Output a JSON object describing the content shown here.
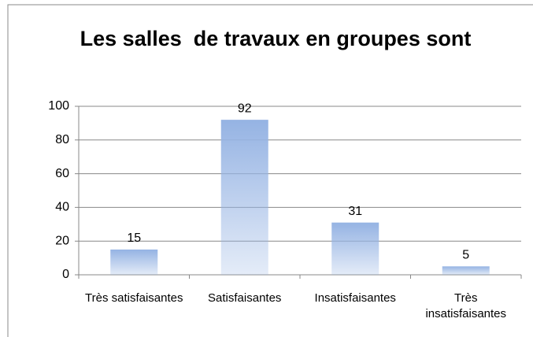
{
  "chart_data": {
    "type": "bar",
    "title": "Les salles  de travaux en groupes sont",
    "categories": [
      "Très satisfaisantes",
      "Satisfaisantes",
      "Insatisfaisantes",
      "Très insatisfaisantes"
    ],
    "values": [
      15,
      92,
      31,
      5
    ],
    "color": "#95b3e3",
    "ylim": [
      0,
      100
    ],
    "yticks": [
      0,
      20,
      40,
      60,
      80,
      100
    ],
    "grid": true
  }
}
